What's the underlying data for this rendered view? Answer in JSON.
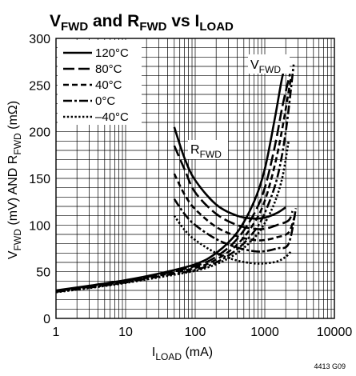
{
  "chart_data": {
    "type": "line",
    "title": {
      "main": "V",
      "sub1": "FWD",
      "mid": " and R",
      "sub2": "FWD",
      "mid2": " vs I",
      "sub3": "LOAD"
    },
    "xlabel": {
      "main": "I",
      "sub": "LOAD",
      "unit": " (mA)"
    },
    "ylabel": {
      "p1": "V",
      "s1": "FWD",
      "p2": " (mV) AND R",
      "s2": "FWD",
      "p3": " (mΩ)"
    },
    "x_scale": "log",
    "xlim": [
      1,
      10000
    ],
    "ylim": [
      0,
      300
    ],
    "x_ticks": [
      1,
      10,
      100,
      1000,
      10000
    ],
    "x_tick_labels": [
      "1",
      "10",
      "100",
      "1000",
      "10000"
    ],
    "y_ticks": [
      0,
      50,
      100,
      150,
      200,
      250,
      300
    ],
    "y_tick_labels": [
      "0",
      "50",
      "100",
      "150",
      "200",
      "250",
      "300"
    ],
    "grid": true,
    "legend_position": "top-left",
    "legend": [
      {
        "label": "120°C",
        "dash": "solid"
      },
      {
        "label": "80°C",
        "dash": "long-dash"
      },
      {
        "label": "40°C",
        "dash": "dash"
      },
      {
        "label": "0°C",
        "dash": "dash-dot"
      },
      {
        "label": "–40°C",
        "dash": "dot"
      }
    ],
    "annotations": {
      "vfwd": {
        "main": "V",
        "sub": "FWD"
      },
      "rfwd": {
        "main": "R",
        "sub": "FWD"
      }
    },
    "figure_id": "4413 G09",
    "series": [
      {
        "group": "VFWD",
        "temp": "120°C",
        "dash": "solid",
        "x": [
          1,
          3,
          10,
          30,
          100,
          200,
          400,
          700,
          1000,
          1400,
          1800,
          2100
        ],
        "y": [
          30,
          35,
          41,
          48,
          58,
          70,
          92,
          125,
          160,
          215,
          260,
          272
        ]
      },
      {
        "group": "VFWD",
        "temp": "80°C",
        "dash": "long-dash",
        "x": [
          1,
          3,
          10,
          30,
          100,
          200,
          400,
          700,
          1000,
          1400,
          1800,
          2300
        ],
        "y": [
          29.5,
          34.5,
          40,
          47,
          56,
          66,
          85,
          112,
          140,
          185,
          228,
          262
        ]
      },
      {
        "group": "VFWD",
        "temp": "40°C",
        "dash": "dash",
        "x": [
          1,
          3,
          10,
          30,
          100,
          200,
          400,
          700,
          1000,
          1400,
          1800,
          2400
        ],
        "y": [
          29,
          34,
          39.5,
          46,
          54,
          63,
          79,
          102,
          126,
          165,
          205,
          260
        ]
      },
      {
        "group": "VFWD",
        "temp": "0°C",
        "dash": "dash-dot",
        "x": [
          1,
          3,
          10,
          30,
          100,
          200,
          400,
          700,
          1000,
          1500,
          2000,
          2600
        ],
        "y": [
          28.5,
          33,
          38.5,
          45,
          52,
          60,
          74,
          93,
          113,
          150,
          200,
          272
        ]
      },
      {
        "group": "VFWD",
        "temp": "–40°C",
        "dash": "dot",
        "x": [
          1,
          3,
          10,
          30,
          100,
          200,
          400,
          700,
          1000,
          1400,
          1800,
          2200
        ],
        "y": [
          28,
          32.5,
          38,
          44,
          51,
          58,
          70,
          86,
          102,
          125,
          152,
          190
        ]
      },
      {
        "group": "RFWD",
        "temp": "120°C",
        "dash": "solid",
        "x": [
          50,
          70,
          100,
          200,
          400,
          700,
          1000,
          1500,
          2000
        ],
        "y": [
          205,
          172,
          148,
          122,
          110,
          107,
          108,
          113,
          119
        ]
      },
      {
        "group": "RFWD",
        "temp": "80°C",
        "dash": "long-dash",
        "x": [
          50,
          70,
          100,
          200,
          400,
          700,
          1000,
          1500,
          2200,
          2500
        ],
        "y": [
          185,
          160,
          135,
          112,
          100,
          96,
          96,
          100,
          105,
          115
        ]
      },
      {
        "group": "RFWD",
        "temp": "40°C",
        "dash": "dash",
        "x": [
          50,
          70,
          100,
          200,
          400,
          700,
          1000,
          1500,
          2200,
          2700
        ],
        "y": [
          155,
          133,
          117,
          98,
          88,
          84,
          84,
          87,
          92,
          110
        ]
      },
      {
        "group": "RFWD",
        "temp": "0°C",
        "dash": "dash-dot",
        "x": [
          50,
          70,
          100,
          200,
          400,
          700,
          1000,
          1500,
          2200,
          2800
        ],
        "y": [
          128,
          112,
          100,
          85,
          76,
          72,
          72,
          75,
          80,
          118
        ]
      },
      {
        "group": "RFWD",
        "temp": "–40°C",
        "dash": "dot",
        "x": [
          50,
          70,
          100,
          200,
          400,
          700,
          1000,
          1500,
          2000,
          2400
        ],
        "y": [
          110,
          95,
          84,
          70,
          62,
          59,
          59,
          61,
          66,
          72
        ]
      }
    ]
  }
}
